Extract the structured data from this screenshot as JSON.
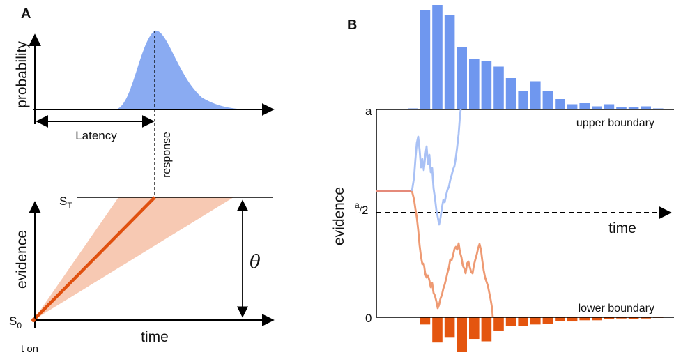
{
  "panel_a": {
    "label": "A",
    "top_plot": {
      "ylabel": "probability",
      "latency_label": "Latency",
      "response_label": "response",
      "colors": {
        "fill": "#8aabf2"
      }
    },
    "bottom_plot": {
      "ylabel": "evidence",
      "xlabel": "time",
      "threshold_label_main": "S",
      "threshold_label_sub": "T",
      "start_label_main": "S",
      "start_label_sub": "0",
      "onset_label": "t on",
      "theta_label": "θ",
      "colors": {
        "line": "#e0500f",
        "band": "#f7c9b3"
      }
    }
  },
  "panel_b": {
    "label": "B",
    "ylabel": "evidence",
    "xlabel": "time",
    "upper_tick": "a",
    "lower_tick": "0",
    "mid_tick_main": "a",
    "mid_tick_sub": "2",
    "upper_boundary_label": "upper boundary",
    "lower_boundary_label": "lower boundary",
    "colors": {
      "upper": "#6f97ef",
      "upper_trace": "#a9c1f5",
      "lower": "#e4550f",
      "lower_trace": "#ee9a73",
      "start": "#e58a7a"
    },
    "upper_hist_values": [
      1,
      95,
      100,
      90,
      60,
      48,
      46,
      41,
      30,
      18,
      27,
      18,
      10,
      5,
      6,
      3,
      5,
      2,
      2,
      3,
      1
    ],
    "lower_hist_values": [
      0,
      12,
      42,
      34,
      58,
      36,
      40,
      22,
      14,
      14,
      12,
      11,
      6,
      7,
      5,
      5,
      3,
      2,
      3,
      2,
      1
    ]
  }
}
